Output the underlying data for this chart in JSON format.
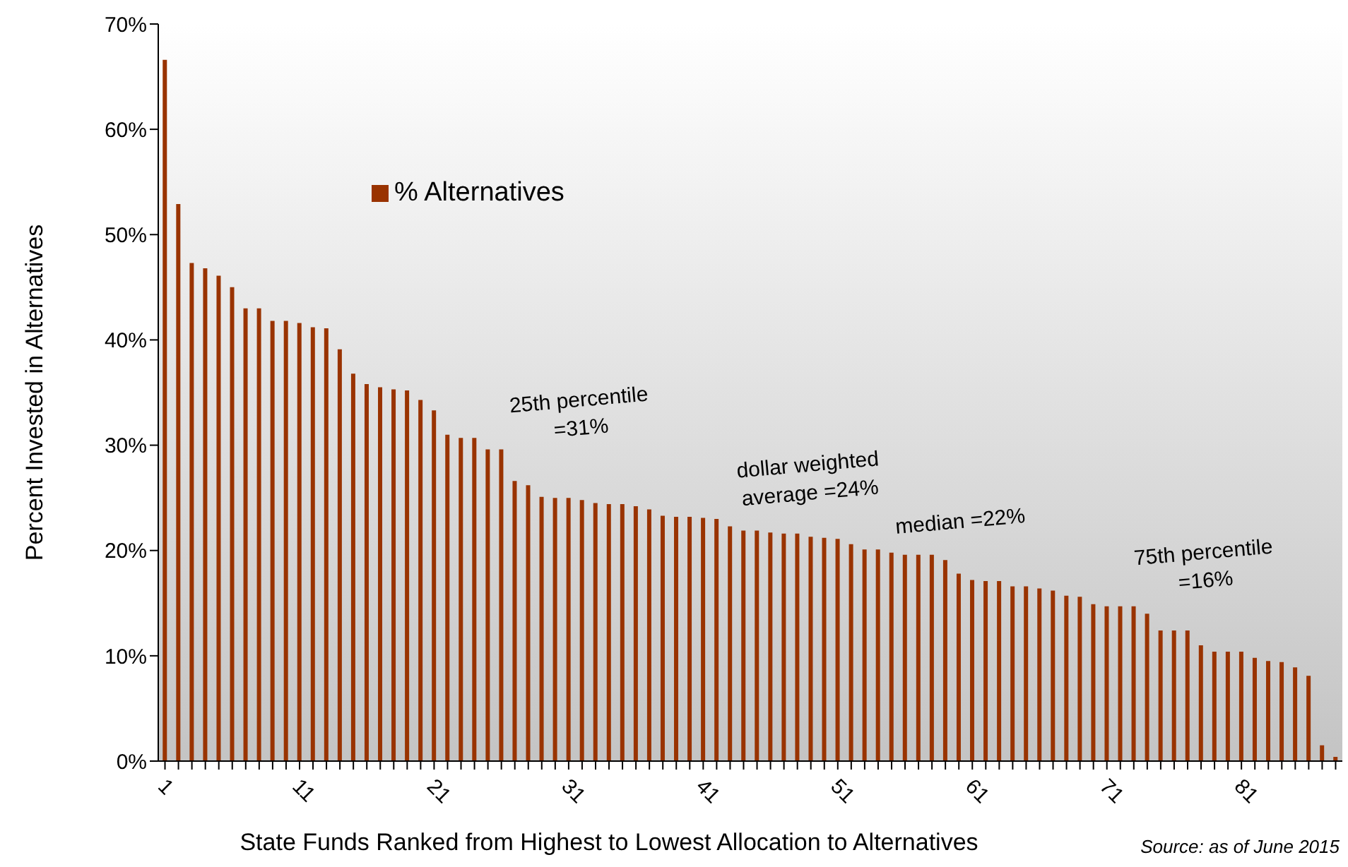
{
  "chart_data": {
    "type": "bar",
    "xlabel": "State Funds Ranked from Highest to Lowest Allocation to Alternatives",
    "ylabel": "Percent Invested in Alternatives",
    "categories": [
      "1",
      null,
      null,
      null,
      null,
      null,
      null,
      null,
      null,
      null,
      "11",
      null,
      null,
      null,
      null,
      null,
      null,
      null,
      null,
      null,
      "21",
      null,
      null,
      null,
      null,
      null,
      null,
      null,
      null,
      null,
      "31",
      null,
      null,
      null,
      null,
      null,
      null,
      null,
      null,
      null,
      "41",
      null,
      null,
      null,
      null,
      null,
      null,
      null,
      null,
      null,
      "51",
      null,
      null,
      null,
      null,
      null,
      null,
      null,
      null,
      null,
      "61",
      null,
      null,
      null,
      null,
      null,
      null,
      null,
      null,
      null,
      "71",
      null,
      null,
      null,
      null,
      null,
      null,
      null,
      null,
      null,
      "81",
      null,
      null,
      null,
      null,
      null,
      null,
      null
    ],
    "series": [
      {
        "name": "% Alternatives",
        "color": "#993300",
        "values": [
          66.6,
          52.9,
          47.3,
          46.8,
          46.1,
          45.0,
          43.0,
          43.0,
          41.8,
          41.8,
          41.6,
          41.2,
          41.1,
          39.1,
          36.8,
          35.8,
          35.5,
          35.3,
          35.2,
          34.3,
          33.3,
          31.0,
          30.7,
          30.7,
          29.6,
          29.6,
          26.6,
          26.2,
          25.1,
          25.0,
          25.0,
          24.8,
          24.5,
          24.4,
          24.4,
          24.2,
          23.9,
          23.3,
          23.2,
          23.2,
          23.1,
          23.0,
          22.3,
          21.9,
          21.9,
          21.7,
          21.6,
          21.6,
          21.3,
          21.2,
          21.1,
          20.6,
          20.1,
          20.1,
          19.8,
          19.6,
          19.6,
          19.6,
          19.1,
          17.8,
          17.2,
          17.1,
          17.1,
          16.6,
          16.6,
          16.4,
          16.2,
          15.7,
          15.6,
          14.9,
          14.7,
          14.7,
          14.7,
          14.0,
          12.4,
          12.4,
          12.4,
          11.0,
          10.4,
          10.4,
          10.4,
          9.8,
          9.5,
          9.4,
          8.9,
          8.1,
          1.5,
          0.4
        ]
      }
    ],
    "ylim": [
      0,
      70
    ],
    "yticks": [
      {
        "value": 0,
        "label": "0%"
      },
      {
        "value": 10,
        "label": "10%"
      },
      {
        "value": 20,
        "label": "20%"
      },
      {
        "value": 30,
        "label": "30%"
      },
      {
        "value": 40,
        "label": "40%"
      },
      {
        "value": 50,
        "label": "50%"
      },
      {
        "value": 60,
        "label": "60%"
      },
      {
        "value": 70,
        "label": "70%"
      }
    ],
    "legend": "top left",
    "annotations": [
      "25th percentile\n=31%",
      "dollar weighted\naverage =24%",
      "median =22%",
      "75th percentile\n=16%",
      "Source: as of June 2015"
    ]
  }
}
